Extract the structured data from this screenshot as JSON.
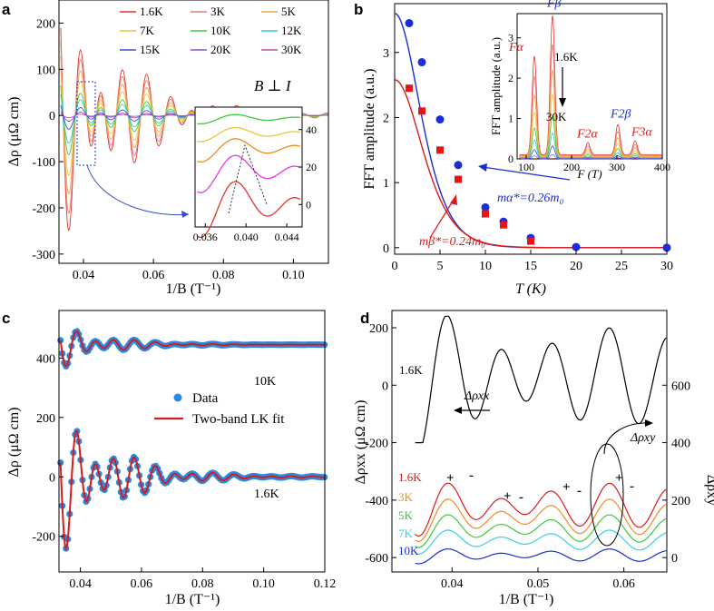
{
  "chart_data": [
    {
      "panel": "a",
      "type": "line",
      "xlabel": "1/B (T⁻¹)",
      "ylabel": "Δρ (μΩ cm)",
      "xlim": [
        0.033,
        0.11
      ],
      "ylim": [
        -320,
        250
      ],
      "xticks": [
        "0.04",
        "0.06",
        "0.08",
        "0.10"
      ],
      "yticks": [
        "-300",
        "-200",
        "-100",
        "0",
        "100",
        "200"
      ],
      "annotation": "B ⊥ I",
      "legend": [
        {
          "name": "1.6K",
          "color": "#e8322c"
        },
        {
          "name": "3K",
          "color": "#e87878"
        },
        {
          "name": "5K",
          "color": "#f0a040"
        },
        {
          "name": "7K",
          "color": "#f2c238"
        },
        {
          "name": "10K",
          "color": "#3ec83e"
        },
        {
          "name": "12K",
          "color": "#38c8c8"
        },
        {
          "name": "15K",
          "color": "#3848d8"
        },
        {
          "name": "20K",
          "color": "#9050c8"
        },
        {
          "name": "30K",
          "color": "#c050a8"
        }
      ],
      "series_amplitude": [
        1.0,
        0.85,
        0.68,
        0.52,
        0.34,
        0.24,
        0.12,
        0.05,
        0.02
      ],
      "inset": {
        "xlim": [
          0.035,
          0.0455
        ],
        "ylim": [
          -12,
          52
        ],
        "xticks": [
          "0.036",
          "0.040",
          "0.044"
        ],
        "yticks": [
          "0",
          "20",
          "40"
        ],
        "series_colors": [
          "#e8322c",
          "#e838e0",
          "#f08a20",
          "#f2c238",
          "#3ec83e"
        ],
        "offsets": [
          0,
          18,
          30,
          38,
          46
        ]
      }
    },
    {
      "panel": "b",
      "type": "scatter",
      "xlabel": "T (K)",
      "ylabel": "FFT amplitude (a.u.)",
      "xlim": [
        0,
        30
      ],
      "ylim": [
        -0.1,
        3.75
      ],
      "xticks": [
        "0",
        "5",
        "10",
        "15",
        "20",
        "25",
        "30"
      ],
      "yticks": [
        "0",
        "1",
        "2",
        "3"
      ],
      "series": [
        {
          "name": "mα*=0.26m₀",
          "color": "#1a2ed8",
          "marker": "circle",
          "x": [
            1.6,
            3,
            5,
            7,
            10,
            12,
            15,
            20,
            30
          ],
          "y": [
            3.45,
            2.85,
            1.97,
            1.27,
            0.62,
            0.4,
            0.15,
            0.01,
            0.0
          ]
        },
        {
          "name": "mβ*=0.24m₀",
          "color": "#e01818",
          "marker": "square",
          "x": [
            1.6,
            3,
            5,
            7,
            10,
            12,
            15
          ],
          "y": [
            2.45,
            2.1,
            1.5,
            1.05,
            0.52,
            0.35,
            0.1
          ]
        }
      ],
      "labels": {
        "alpha_m": "mα*=0.26m₀",
        "beta_m": "mβ*=0.24m₀"
      },
      "inset": {
        "xlabel": "F (T)",
        "ylabel": "FFT amplitude (a.u.)",
        "xlim": [
          80,
          400
        ],
        "ylim": [
          0,
          3.6
        ],
        "xticks": [
          "100",
          "200",
          "300",
          "400"
        ],
        "yticks": [
          "0",
          "1",
          "2",
          "3"
        ],
        "peaks": [
          {
            "label": "Fα",
            "freq": 118,
            "height": 2.45,
            "color": "#e01818"
          },
          {
            "label": "Fβ",
            "freq": 158,
            "height": 3.45,
            "color": "#1a2ed8"
          },
          {
            "label": "F2α",
            "freq": 236,
            "height": 0.3,
            "color": "#e01818"
          },
          {
            "label": "F2β",
            "freq": 302,
            "height": 0.75,
            "color": "#1a2ed8"
          },
          {
            "label": "F3α",
            "freq": 340,
            "height": 0.35,
            "color": "#e01818"
          }
        ],
        "labels": {
          "top": "1.6K",
          "bottom": "30K"
        }
      }
    },
    {
      "panel": "c",
      "type": "scatter",
      "xlabel": "1/B (T⁻¹)",
      "ylabel": "Δρ (μΩ cm)",
      "xlim": [
        0.033,
        0.12
      ],
      "ylim": [
        -320,
        560
      ],
      "xticks": [
        "0.04",
        "0.06",
        "0.08",
        "0.10",
        "0.12"
      ],
      "yticks": [
        "-200",
        "0",
        "200",
        "400"
      ],
      "legend": [
        {
          "name": "Data",
          "color": "#2a8ae0"
        },
        {
          "name": "Two-band LK fit",
          "color": "#d41c1c"
        }
      ],
      "curve_labels": [
        "10K",
        "1.6K"
      ],
      "offsets": [
        445,
        0
      ]
    },
    {
      "panel": "d",
      "type": "line",
      "xlabel": "1/B (T⁻¹)",
      "ylabel_left": "Δρxx (μΩ cm)",
      "ylabel_right": "Δρxy",
      "xlim": [
        0.033,
        0.065
      ],
      "ylim_left": [
        -650,
        260
      ],
      "ylim_right": [
        -50,
        860
      ],
      "xticks": [
        "0.04",
        "0.05",
        "0.06"
      ],
      "yticks_left": [
        "-600",
        "-400",
        "-200",
        "0",
        "200"
      ],
      "yticks_right": [
        "0",
        "200",
        "400",
        "600"
      ],
      "rho_xx_label": "Δρxx",
      "rho_xy_label": "Δρxy",
      "top_curve_label": "1.6K",
      "xy_curves": [
        {
          "name": "1.6K",
          "color": "#e01818"
        },
        {
          "name": "3K",
          "color": "#f08a20"
        },
        {
          "name": "5K",
          "color": "#3ec83e"
        },
        {
          "name": "7K",
          "color": "#38d0e0"
        },
        {
          "name": "10K",
          "color": "#1a2ed8"
        }
      ],
      "signs": [
        "+",
        "-",
        "+",
        "-",
        "+",
        "-",
        "+",
        "-"
      ]
    }
  ]
}
